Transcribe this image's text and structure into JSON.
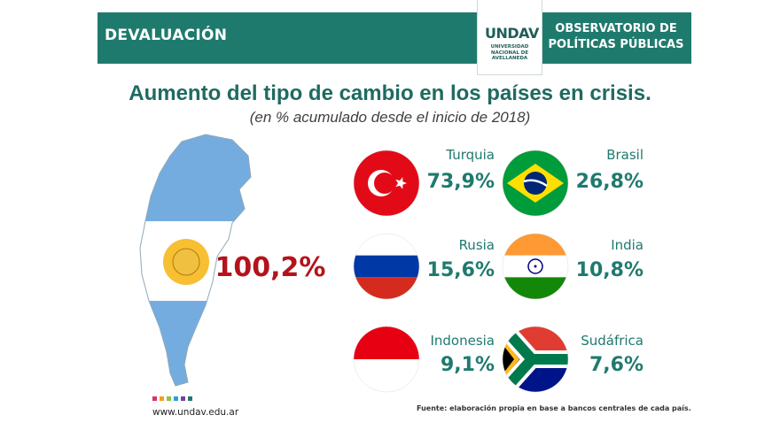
{
  "header": {
    "section": "DEVALUACIÓN",
    "logo_mark": "UNDAV",
    "logo_text": [
      "UNIVERSIDAD",
      "NACIONAL DE",
      "AVELLANEDA"
    ],
    "observatorio_line1": "OBSERVATORIO DE",
    "observatorio_line2": "POLÍTICAS PÚBLICAS"
  },
  "chart_data": {
    "type": "table",
    "title": "Aumento del tipo de cambio en los países en crisis.",
    "subtitle": "(en % acumulado desde el inicio de 2018)",
    "categories": [
      "Argentina",
      "Turquía",
      "Brasil",
      "Rusia",
      "India",
      "Indonesia",
      "Sudáfrica"
    ],
    "values": [
      100.2,
      73.9,
      26.8,
      15.6,
      10.8,
      9.1,
      7.6
    ],
    "value_labels": [
      "100,2%",
      "73,9%",
      "26,8%",
      "15,6%",
      "10,8%",
      "9,1%",
      "7,6%"
    ],
    "country_labels": [
      "",
      "Turquia",
      "Brasil",
      "Rusia",
      "India",
      "Indonesia",
      "Sudáfrica"
    ]
  },
  "footer": {
    "url": "www.undav.edu.ar",
    "source": "Fuente: elaboración propia en base a bancos centrales de cada país.",
    "dot_colors": [
      "#e0306a",
      "#f0a020",
      "#8cc63f",
      "#2aa0d8",
      "#7a3fa0",
      "#1f7a6e"
    ]
  },
  "colors": {
    "accent": "#1f7a6e",
    "argentina_value": "#b5121b",
    "argentina_blue": "#74acdf"
  }
}
